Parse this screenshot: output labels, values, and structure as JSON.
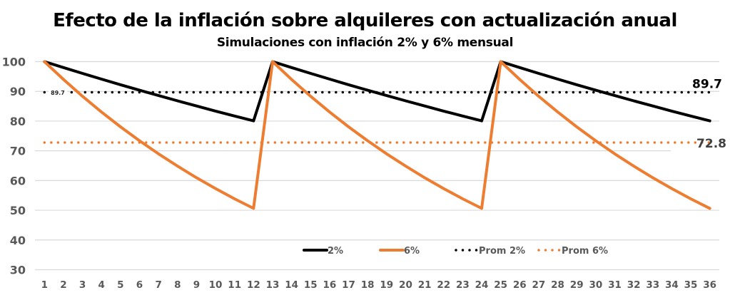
{
  "chart_data": {
    "type": "line",
    "title": "Efecto de la inflación sobre alquileres con actualización anual",
    "subtitle": "Simulaciones con inflación 2% y 6% mensual",
    "xlabel": "",
    "ylabel": "",
    "categories": [
      "1",
      "2",
      "3",
      "4",
      "5",
      "6",
      "7",
      "8",
      "9",
      "10",
      "11",
      "12",
      "13",
      "14",
      "15",
      "16",
      "17",
      "18",
      "19",
      "20",
      "21",
      "22",
      "23",
      "24",
      "25",
      "26",
      "27",
      "28",
      "29",
      "30",
      "31",
      "32",
      "33",
      "34",
      "35",
      "36"
    ],
    "ylim": [
      30,
      100
    ],
    "yticks": [
      30,
      40,
      50,
      60,
      70,
      80,
      90,
      100
    ],
    "grid": true,
    "legend_position": "bottom-center-inside",
    "series": [
      {
        "name": "2%",
        "style": "solid",
        "color": "#000000",
        "values": [
          100,
          98,
          96.04,
          94.12,
          92.24,
          90.39,
          88.58,
          86.81,
          85.08,
          83.37,
          81.71,
          80.07,
          100,
          98,
          96.04,
          94.12,
          92.24,
          90.39,
          88.58,
          86.81,
          85.08,
          83.37,
          81.71,
          80.07,
          100,
          98,
          96.04,
          94.12,
          92.24,
          90.39,
          88.58,
          86.81,
          85.08,
          83.37,
          81.71,
          80.07
        ]
      },
      {
        "name": "6%",
        "style": "solid",
        "color": "#ED7D31",
        "values": [
          100,
          94,
          88.36,
          83.06,
          78.07,
          73.39,
          68.99,
          64.85,
          60.96,
          57.3,
          53.86,
          50.63,
          100,
          94,
          88.36,
          83.06,
          78.07,
          73.39,
          68.99,
          64.85,
          60.96,
          57.3,
          53.86,
          50.63,
          100,
          94,
          88.36,
          83.06,
          78.07,
          73.39,
          68.99,
          64.85,
          60.96,
          57.3,
          53.86,
          50.63
        ]
      },
      {
        "name": "Prom 2%",
        "style": "dotted",
        "color": "#000000",
        "value": 89.7
      },
      {
        "name": "Prom 6%",
        "style": "dotted",
        "color": "#ED7D31",
        "value": 72.8
      }
    ],
    "annotations": [
      {
        "text": "89.7",
        "series": "Prom 2%",
        "position": "left-small"
      },
      {
        "text": "89.7",
        "series": "Prom 2%",
        "position": "right-large"
      },
      {
        "text": "72.8",
        "series": "Prom 6%",
        "position": "right-large"
      }
    ]
  }
}
